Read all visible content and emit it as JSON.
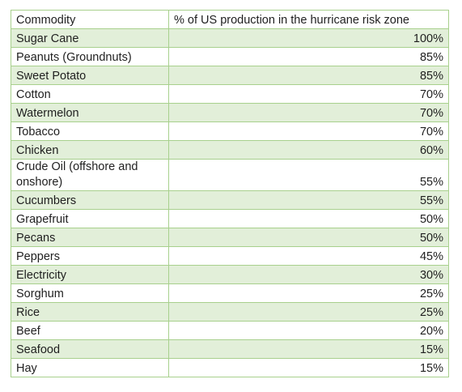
{
  "table": {
    "headers": [
      "Commodity",
      "% of US production in the hurricane risk zone"
    ],
    "rows": [
      {
        "commodity": "Sugar Cane",
        "percent": "100%"
      },
      {
        "commodity": "Peanuts (Groundnuts)",
        "percent": "85%"
      },
      {
        "commodity": "Sweet Potato",
        "percent": "85%"
      },
      {
        "commodity": "Cotton",
        "percent": "70%"
      },
      {
        "commodity": "Watermelon",
        "percent": "70%"
      },
      {
        "commodity": "Tobacco",
        "percent": "70%"
      },
      {
        "commodity": "Chicken",
        "percent": "60%"
      },
      {
        "commodity": "Crude Oil (offshore and onshore)",
        "percent": "55%"
      },
      {
        "commodity": "Cucumbers",
        "percent": "55%"
      },
      {
        "commodity": "Grapefruit",
        "percent": "50%"
      },
      {
        "commodity": "Pecans",
        "percent": "50%"
      },
      {
        "commodity": "Peppers",
        "percent": "45%"
      },
      {
        "commodity": "Electricity",
        "percent": "30%"
      },
      {
        "commodity": "Sorghum",
        "percent": "25%"
      },
      {
        "commodity": "Rice",
        "percent": "25%"
      },
      {
        "commodity": "Beef",
        "percent": "20%"
      },
      {
        "commodity": "Seafood",
        "percent": "15%"
      },
      {
        "commodity": "Hay",
        "percent": "15%"
      }
    ]
  },
  "colors": {
    "border": "#a8d08d",
    "row_shade": "#e2efd9"
  }
}
